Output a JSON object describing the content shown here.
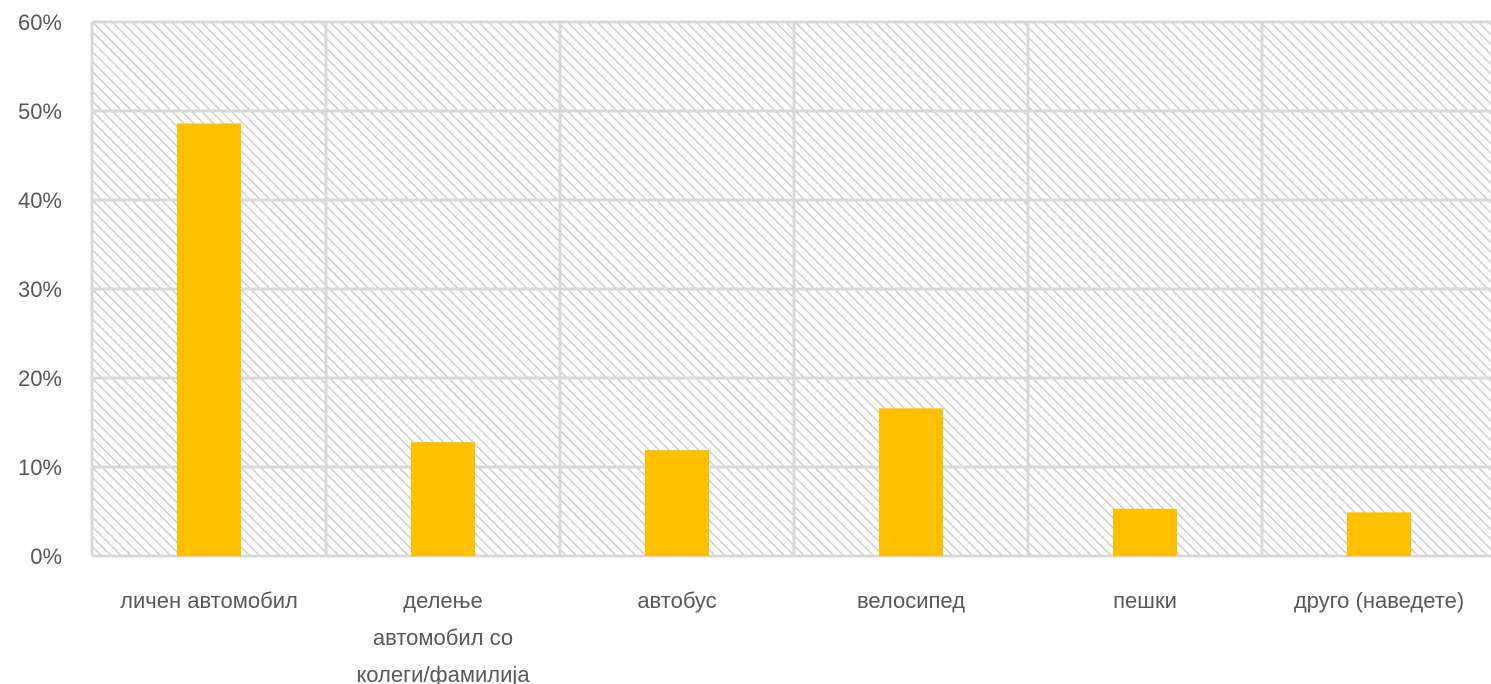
{
  "chart_data": {
    "type": "bar",
    "categories": [
      [
        "личен автомобил"
      ],
      [
        "делење",
        "автомобил со",
        "колеги/фамилија"
      ],
      [
        "автобус"
      ],
      [
        "велосипед"
      ],
      [
        "пешки"
      ],
      [
        "друго (наведете)"
      ]
    ],
    "values": [
      48.6,
      12.8,
      11.9,
      16.6,
      5.3,
      4.9
    ],
    "y_ticks": [
      "0%",
      "10%",
      "20%",
      "30%",
      "40%",
      "50%",
      "60%"
    ],
    "ylim": [
      0,
      60
    ],
    "grid": true,
    "legend": "none",
    "colors": {
      "bar": "#FFC000",
      "grid": "#D9D9D9",
      "hatch": "#D0D0D0",
      "text": "#595959"
    }
  }
}
